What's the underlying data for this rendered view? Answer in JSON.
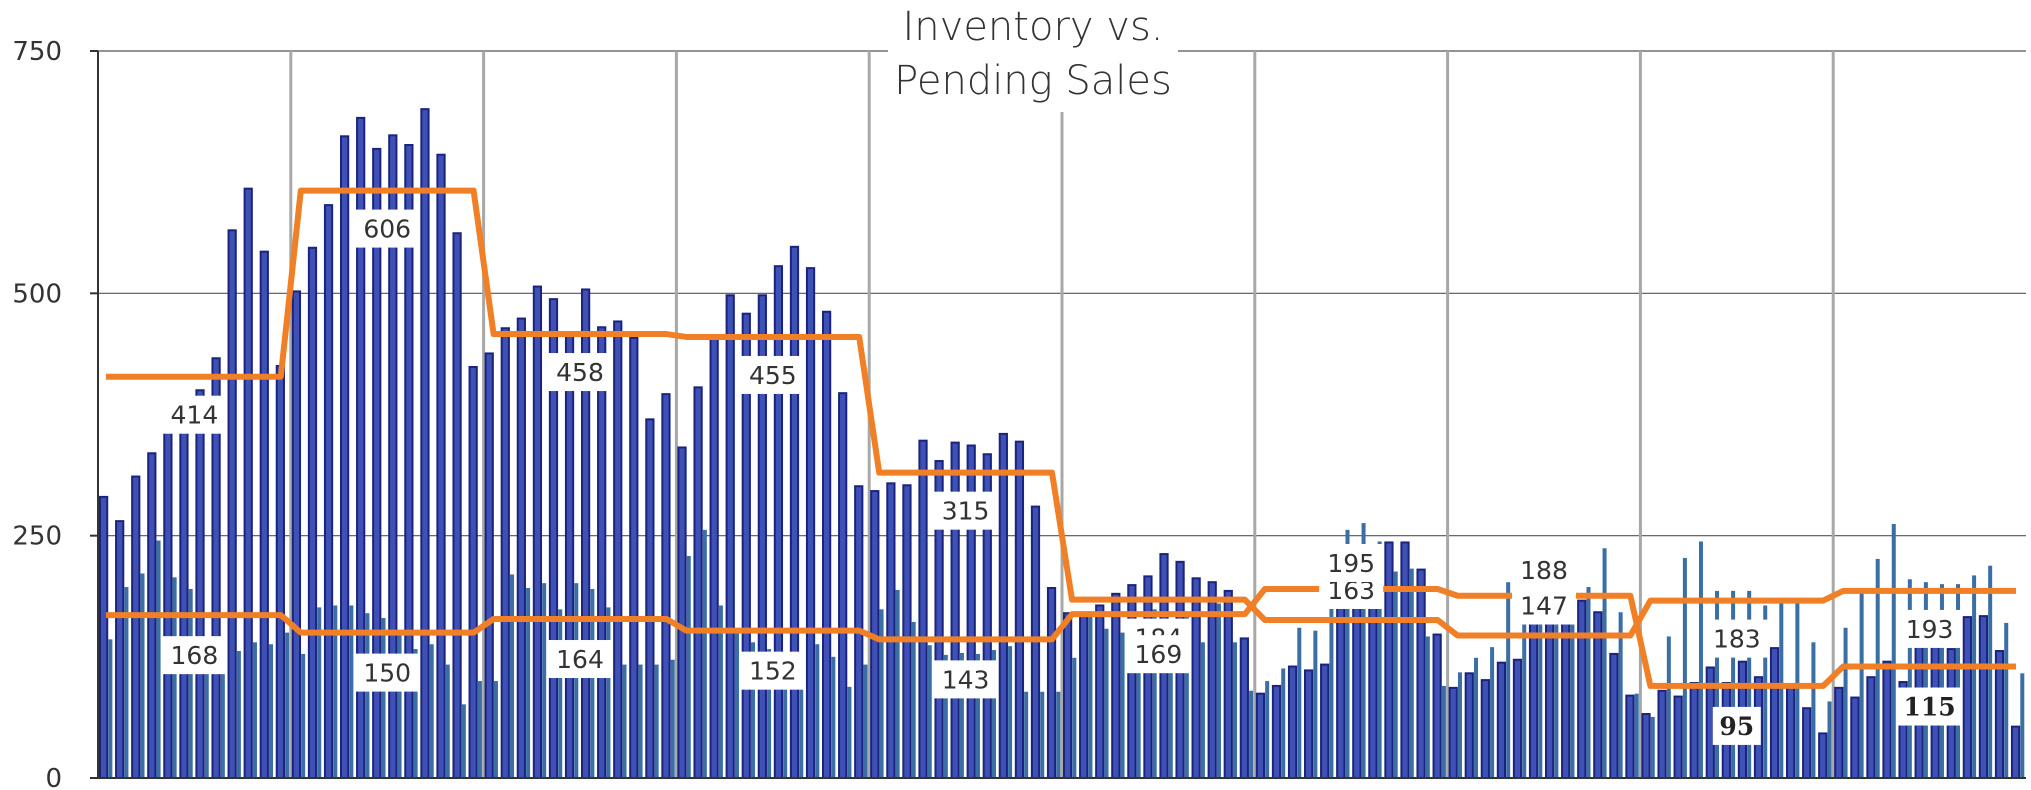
{
  "chart_data": {
    "type": "bar",
    "title": [
      "Inventory vs.",
      "Pending Sales"
    ],
    "xlabel": "",
    "ylabel": "",
    "ylim": [
      0,
      750
    ],
    "yticks": [
      0,
      250,
      500,
      750
    ],
    "grid": "horizontal and vertical",
    "colors": {
      "inventory_bar": "#1a237e",
      "inventory_bar_fill": "#3f51b5",
      "pending_bar": "#3a6ea5",
      "average_line": "#f07f26",
      "gridline": "#a8a8a8"
    },
    "series": [
      {
        "values": [
          290,
          265,
          311,
          335,
          357,
          372,
          400,
          433,
          565,
          608,
          543,
          425,
          502,
          547,
          591,
          662,
          681,
          649,
          663,
          653,
          690,
          643,
          562,
          424,
          438,
          464,
          474,
          507,
          494,
          458,
          504,
          465,
          471,
          454,
          370,
          396,
          341,
          403,
          456,
          498,
          479,
          498,
          528,
          548,
          526,
          481,
          397,
          301,
          296,
          304,
          302,
          348,
          327,
          346,
          343,
          334,
          355,
          347,
          280,
          196,
          170,
          170,
          178,
          190,
          199,
          208,
          231,
          223,
          206,
          202,
          193,
          144,
          87,
          95,
          115,
          111,
          117,
          187,
          205,
          221,
          243,
          243,
          215,
          148,
          93,
          108,
          101,
          119,
          122,
          163,
          175,
          210,
          183,
          171,
          128,
          85,
          66,
          90,
          84,
          98,
          114,
          98,
          120,
          104,
          134,
          96,
          72,
          46,
          93,
          83,
          104,
          120,
          99,
          150,
          138,
          133,
          166,
          167,
          131,
          53
        ]
      },
      {
        "values": [
          143,
          197,
          211,
          245,
          207,
          195,
          130,
          128,
          131,
          140,
          138,
          150,
          128,
          176,
          178,
          178,
          170,
          165,
          147,
          133,
          138,
          117,
          76,
          100,
          100,
          210,
          196,
          201,
          174,
          201,
          195,
          176,
          117,
          117,
          117,
          122,
          229,
          256,
          178,
          150,
          140,
          133,
          130,
          100,
          138,
          125,
          94,
          117,
          174,
          194,
          161,
          137,
          127,
          129,
          128,
          132,
          136,
          89,
          89,
          89,
          124,
          170,
          154,
          150,
          163,
          174,
          158,
          168,
          140,
          180,
          140,
          90,
          100,
          113,
          155,
          152,
          235,
          256,
          263,
          244,
          213,
          216,
          146,
          95,
          109,
          124,
          135,
          202,
          208,
          234,
          229,
          225,
          197,
          237,
          171,
          87,
          63,
          146,
          227,
          244,
          193,
          193,
          193,
          178,
          183,
          183,
          140,
          79,
          155,
          196,
          226,
          262,
          205,
          202,
          200,
          200,
          209,
          219,
          160,
          108
        ]
      }
    ],
    "period_averages": [
      {
        "high": "414",
        "low": "168"
      },
      {
        "high": "606",
        "low": "150"
      },
      {
        "high": "458",
        "low": "164"
      },
      {
        "high": "455",
        "low": "152"
      },
      {
        "high": "315",
        "low": "143"
      },
      {
        "high": "184",
        "low": "169"
      },
      {
        "high": "163",
        "low": "195"
      },
      {
        "high": "147",
        "low": "188"
      },
      {
        "high": "183",
        "low": "95"
      },
      {
        "high": "193",
        "low": "115"
      }
    ]
  }
}
